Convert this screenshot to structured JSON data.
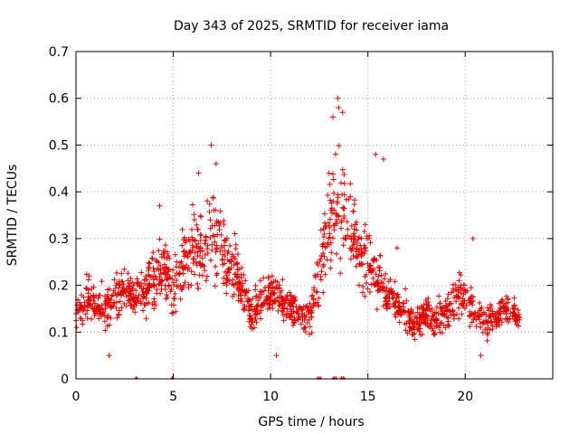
{
  "chart_data": {
    "type": "scatter",
    "title": "Day 343 of 2025, SRMTID for receiver iama",
    "xlabel": "GPS time / hours",
    "ylabel": "SRMTID / TECUs",
    "xlim": [
      0,
      24.5
    ],
    "ylim": [
      0,
      0.7
    ],
    "xticks": [
      0,
      5,
      10,
      15,
      20
    ],
    "xtick_labels": [
      "0",
      "5",
      "10",
      "15",
      "20"
    ],
    "yticks": [
      0,
      0.1,
      0.2,
      0.3,
      0.4,
      0.5,
      0.6,
      0.7
    ],
    "ytick_labels": [
      "0",
      "0.1",
      "0.2",
      "0.3",
      "0.4",
      "0.5",
      "0.6",
      "0.7"
    ],
    "grid": true,
    "marker": "+",
    "marker_color": "#e00000",
    "series": [
      {
        "name": "SRMTID",
        "profile_x": [
          0.0,
          0.5,
          1.0,
          1.5,
          2.0,
          2.5,
          3.0,
          3.5,
          4.0,
          4.5,
          5.0,
          5.5,
          6.0,
          6.5,
          7.0,
          7.5,
          8.0,
          8.5,
          9.0,
          9.5,
          10.0,
          10.5,
          11.0,
          11.5,
          12.0,
          12.5,
          13.0,
          13.5,
          14.0,
          14.5,
          15.0,
          15.5,
          16.0,
          16.5,
          17.0,
          17.5,
          18.0,
          18.5,
          19.0,
          19.5,
          20.0,
          20.5,
          21.0,
          21.5,
          22.0,
          22.5,
          22.8
        ],
        "profile_y": [
          0.14,
          0.17,
          0.16,
          0.15,
          0.18,
          0.19,
          0.17,
          0.2,
          0.21,
          0.24,
          0.2,
          0.24,
          0.28,
          0.27,
          0.3,
          0.27,
          0.24,
          0.2,
          0.14,
          0.17,
          0.19,
          0.17,
          0.15,
          0.14,
          0.13,
          0.22,
          0.33,
          0.38,
          0.33,
          0.28,
          0.24,
          0.22,
          0.18,
          0.16,
          0.13,
          0.12,
          0.14,
          0.12,
          0.14,
          0.17,
          0.18,
          0.14,
          0.12,
          0.13,
          0.15,
          0.14,
          0.13
        ],
        "spread_y": [
          0.04,
          0.06,
          0.05,
          0.05,
          0.06,
          0.06,
          0.05,
          0.07,
          0.07,
          0.08,
          0.08,
          0.09,
          0.1,
          0.12,
          0.12,
          0.09,
          0.08,
          0.06,
          0.05,
          0.05,
          0.06,
          0.05,
          0.05,
          0.04,
          0.05,
          0.09,
          0.13,
          0.15,
          0.12,
          0.1,
          0.09,
          0.08,
          0.06,
          0.05,
          0.05,
          0.05,
          0.04,
          0.05,
          0.05,
          0.06,
          0.06,
          0.05,
          0.05,
          0.05,
          0.04,
          0.04,
          0.03
        ],
        "extremes": [
          {
            "x": 13.45,
            "y": 0.6
          },
          {
            "x": 13.5,
            "y": 0.58
          },
          {
            "x": 13.7,
            "y": 0.57
          },
          {
            "x": 13.2,
            "y": 0.56
          },
          {
            "x": 6.95,
            "y": 0.5
          },
          {
            "x": 15.4,
            "y": 0.48
          },
          {
            "x": 15.8,
            "y": 0.47
          },
          {
            "x": 7.2,
            "y": 0.46
          },
          {
            "x": 6.3,
            "y": 0.44
          },
          {
            "x": 13.0,
            "y": 0.44
          },
          {
            "x": 4.3,
            "y": 0.37
          },
          {
            "x": 16.5,
            "y": 0.28
          },
          {
            "x": 20.4,
            "y": 0.3
          },
          {
            "x": 1.7,
            "y": 0.05
          },
          {
            "x": 10.3,
            "y": 0.05
          },
          {
            "x": 20.8,
            "y": 0.05
          }
        ],
        "zero_points_x": [
          3.1,
          4.95,
          12.45,
          12.55,
          13.25,
          13.35,
          13.65,
          13.75
        ]
      }
    ]
  }
}
